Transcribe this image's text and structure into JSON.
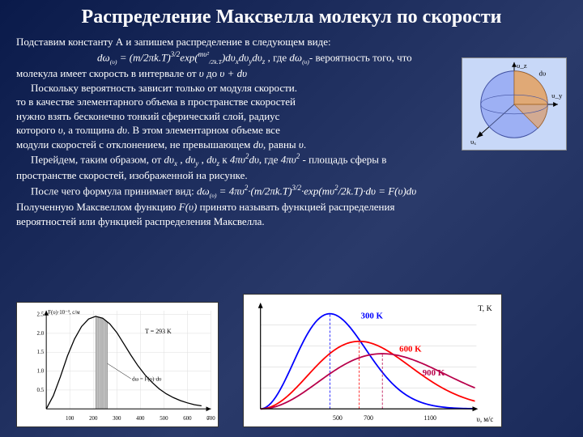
{
  "title": "Распределение Максвелла молекул по скорости",
  "p1": "Подставим константу А и запишем распределение в следующем виде:",
  "formula1_pre": "dω",
  "formula1_sub": "(υ)",
  "formula1_mid": " = (m/2πk.T)",
  "formula1_sup1": "3/2",
  "formula1_exp": "exp(",
  "formula1_exp_sup": "mυ²",
  "formula1_exp_sub": "/2k.T",
  "formula1_exp_close": ")dυ",
  "formula1_x": "x",
  "formula1_dy": "dυ",
  "formula1_y": "y",
  "formula1_dz": "dυ",
  "formula1_z": "z",
  "formula1_after": " , где ",
  "formula1_dw2": "dω",
  "formula1_dw2_sub": "(υ)",
  "formula1_tail": "- вероятность того, что",
  "p2": "молекула имеет скорость в интервале от ",
  "p2_v": "υ",
  "p2_mid": " до ",
  "p2_vdv": "υ + dυ",
  "p3": "Поскольку вероятность зависит только от модуля скорости.",
  "p4": "то в качестве элементарного объема в пространстве скоростей",
  "p5": "нужно взять бесконечно тонкий сферический слой, радиус",
  "p6a": "которого ",
  "p6_v": "υ",
  "p6b": ", а толщина ",
  "p6_dv": "dυ",
  "p6c": ". В этом элементарном объеме все",
  "p7a": "модули скоростей с отклонением, не превышающем ",
  "p7_dv": "dυ",
  "p7b": ", равны ",
  "p7_v": "υ",
  "p7c": ".",
  "p8a": "Перейдем, таким образом, от ",
  "p8_dvx": "dυ",
  "p8_x": "x",
  "p8b": " , ",
  "p8_dvy": "dυ",
  "p8_y": "y",
  "p8c": " , ",
  "p8_dvz": "dυ",
  "p8_z": "z",
  "p8d": " к ",
  "p8_4pi": "4πυ",
  "p8_sq": "2",
  "p8_dv": "dυ",
  "p8e": ", где ",
  "p8_4pi2": "4πυ",
  "p8_sq2": "2",
  "p8f": " - площадь сферы в",
  "p9": "пространстве скоростей, изображенной на рисунке.",
  "p10a": "После чего формула принимает вид:  ",
  "p10_dw": "dω",
  "p10_dw_sub": "(υ)",
  "p10_eq": " = 4πυ",
  "p10_sq": "2",
  "p10_mid": "·(m/2πk.T)",
  "p10_32": "3/2",
  "p10_exp": "·exp(mυ",
  "p10_exp_sq": "2",
  "p10_exp2": "/2k.T)·dυ = F(υ)dυ",
  "p11a": "Полученную Максвеллом функцию ",
  "p11_f": "F(υ)",
  "p11b": " принято называть функцией распределения",
  "p12": "вероятностей или функцией распределения Максвелла.",
  "chart_left": {
    "y_label": "F(υ)·10⁻³, с/м",
    "x_label": "υ",
    "x_ticks": [
      "100",
      "200",
      "300",
      "400",
      "500",
      "600",
      "700"
    ],
    "y_ticks": [
      "0.5",
      "1.0",
      "1.5",
      "2.0",
      "2.5"
    ],
    "curve_color": "#000000",
    "fill_color": "#cccccc",
    "annot": "dω = F(υ)·dυ",
    "temp_label": "T = 293 K",
    "curve": [
      [
        0,
        0
      ],
      [
        30,
        0.35
      ],
      [
        60,
        0.85
      ],
      [
        90,
        1.4
      ],
      [
        120,
        1.85
      ],
      [
        150,
        2.18
      ],
      [
        180,
        2.38
      ],
      [
        210,
        2.45
      ],
      [
        240,
        2.4
      ],
      [
        270,
        2.25
      ],
      [
        300,
        2.02
      ],
      [
        330,
        1.72
      ],
      [
        360,
        1.42
      ],
      [
        390,
        1.14
      ],
      [
        420,
        0.9
      ],
      [
        450,
        0.7
      ],
      [
        480,
        0.53
      ],
      [
        510,
        0.4
      ],
      [
        540,
        0.3
      ],
      [
        570,
        0.22
      ],
      [
        600,
        0.16
      ],
      [
        630,
        0.11
      ],
      [
        660,
        0.08
      ]
    ],
    "shade_x": [
      210,
      260
    ]
  },
  "chart_right": {
    "x_label": "υ, м/с",
    "y_label": "T, K",
    "x_ticks": [
      "500",
      "700",
      "1100"
    ],
    "curves": [
      {
        "label": "300 K",
        "color": "#0000ff",
        "peak_u": 450,
        "height": 1.0
      },
      {
        "label": "600 K",
        "color": "#ff0000",
        "peak_u": 640,
        "height": 0.71
      },
      {
        "label": "900 K",
        "color": "#b8004a",
        "peak_u": 790,
        "height": 0.58
      }
    ]
  },
  "sphere": {
    "bg": "#c8d8f8",
    "outer": "#7a8ff0",
    "cut": "#e8a868",
    "labels": {
      "vx": "υₓ",
      "vy": "υ_y",
      "vz": "υ_z",
      "dv": "dυ"
    }
  }
}
